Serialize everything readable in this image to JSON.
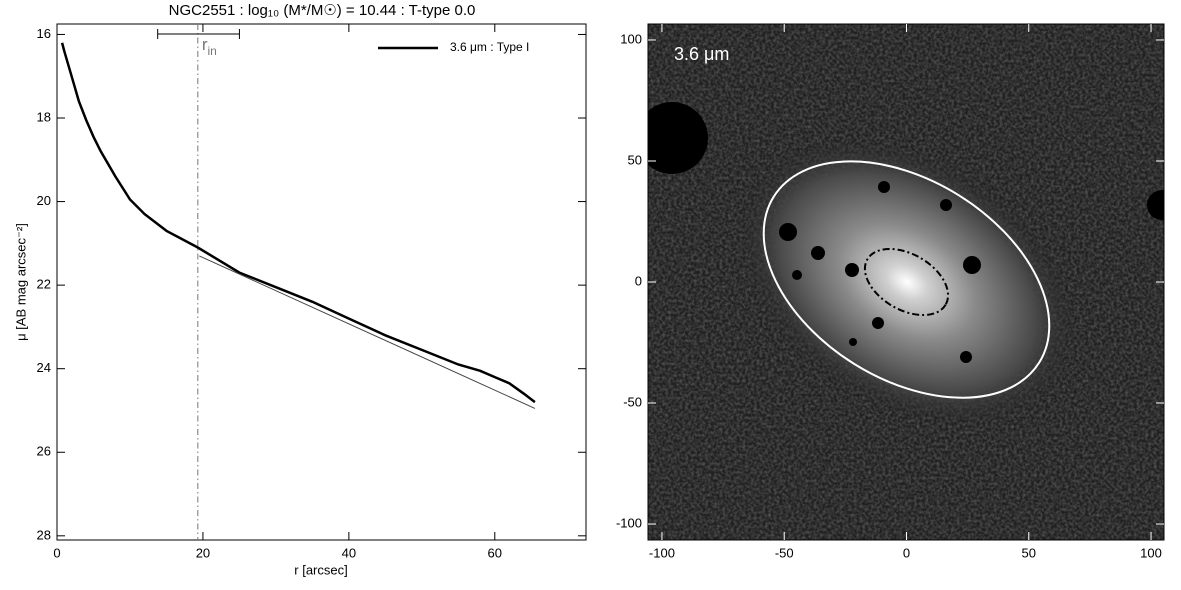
{
  "chart_data": [
    {
      "type": "line",
      "title": "NGC2551 : log₁₀ (M*/M☉) = 10.44 : T-type 0.0",
      "xlabel": "r [arcsec]",
      "ylabel": "μ [AB mag arcsec⁻²]",
      "xlim": [
        0,
        72.5
      ],
      "ylim": [
        15.75,
        28.1
      ],
      "y_inverted": true,
      "xticks": [
        0,
        20,
        40,
        60
      ],
      "yticks": [
        16,
        18,
        20,
        22,
        24,
        26,
        28
      ],
      "legend": "upper right",
      "series": [
        {
          "name": "3.6 μm : Type I",
          "color": "#000000",
          "x": [
            0.7,
            1,
            2,
            3,
            4,
            5,
            6,
            8,
            10,
            12,
            15,
            19.3,
            25,
            30,
            35,
            40,
            45,
            50,
            55,
            58,
            60,
            62,
            64,
            65.5
          ],
          "values": [
            16.2,
            16.4,
            17.0,
            17.6,
            18.05,
            18.45,
            18.8,
            19.4,
            19.95,
            20.3,
            20.7,
            21.1,
            21.7,
            22.05,
            22.4,
            22.8,
            23.2,
            23.55,
            23.9,
            24.05,
            24.2,
            24.35,
            24.6,
            24.8
          ]
        },
        {
          "color": "#444444",
          "x": [
            19.5,
            65.5
          ],
          "values": [
            21.3,
            24.95
          ]
        }
      ],
      "annotation": {
        "label": "r",
        "subscript": "in",
        "x": 19.3,
        "xrange": [
          13.8,
          25
        ],
        "color": "#777777"
      }
    },
    {
      "type": "image",
      "label": "3.6 μm",
      "xlim": [
        -105.7,
        105.3
      ],
      "ylim": [
        -106.6,
        106.6
      ],
      "xticks": [
        -100,
        -50,
        0,
        50,
        100
      ],
      "yticks": [
        -100,
        -50,
        0,
        50,
        100
      ],
      "ellipses": [
        {
          "center": [
            0,
            1
          ],
          "a": 64,
          "b": 41,
          "angle": -32,
          "color": "#ffffff",
          "style": "solid"
        },
        {
          "center": [
            0,
            0
          ],
          "a": 18.5,
          "b": 11.5,
          "angle": -30,
          "color": "#000000",
          "style": "dashdot"
        }
      ]
    }
  ]
}
